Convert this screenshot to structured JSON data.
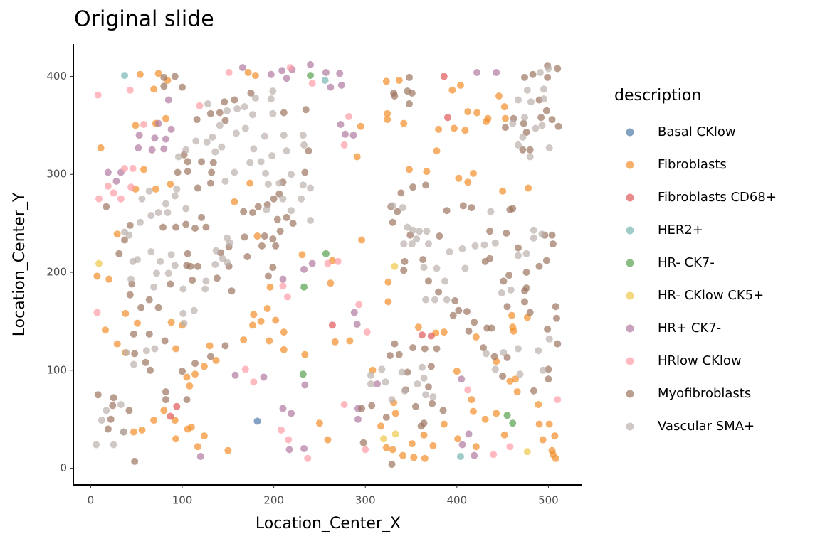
{
  "chart_data": {
    "type": "scatter",
    "title": "Original slide",
    "x_label": "Location_Center_X",
    "y_label": "Location_Center_Y",
    "legend_title": "description",
    "xlim": [
      -19,
      537
    ],
    "ylim": [
      -17,
      433
    ],
    "xticks": [
      0,
      100,
      200,
      300,
      400,
      500
    ],
    "yticks": [
      0,
      100,
      200,
      300,
      400
    ],
    "grid": false,
    "legend_position": "right",
    "series": [
      {
        "name": "Basal CKlow",
        "color": "#4e79a7",
        "x": [
          182
        ],
        "values": [
          48
        ]
      },
      {
        "name": "Fibroblasts",
        "color": "#f28e2b",
        "x": [
          11,
          54,
          74,
          84,
          69,
          82,
          71,
          49,
          58,
          49,
          71,
          87,
          7,
          20,
          29,
          38,
          16,
          29,
          38,
          51,
          88,
          100,
          93,
          105,
          108,
          114,
          124,
          130,
          137,
          110,
          80,
          69,
          56,
          47,
          92,
          93,
          106,
          124,
          117,
          150,
          172,
          180,
          157,
          174,
          182,
          178,
          186,
          193,
          202,
          195,
          211,
          211,
          167,
          177,
          196,
          231,
          262,
          264,
          234,
          267,
          283,
          250,
          259,
          296,
          291,
          295,
          323,
          337,
          324,
          324,
          342,
          348,
          367,
          378,
          380,
          395,
          404,
          397,
          409,
          412,
          422,
          434,
          432,
          446,
          452,
          453,
          402,
          418,
          412,
          478,
          450,
          325,
          325,
          358,
          377,
          386,
          421,
          400,
          443,
          458,
          460,
          461,
          477,
          462,
          308,
          331,
          333,
          317,
          323,
          330,
          341,
          351,
          364,
          353,
          374,
          386,
          365,
          401,
          421,
          418,
          443,
          431,
          416,
          452,
          489,
          490,
          501,
          494,
          504,
          505,
          508,
          507,
          466,
          464
        ],
        "values": [
          327,
          402,
          403,
          396,
          387,
          357,
          352,
          350,
          305,
          285,
          285,
          290,
          196,
          193,
          239,
          158,
          141,
          127,
          118,
          148,
          149,
          146,
          122,
          93,
          84,
          96,
          104,
          125,
          110,
          42,
          59,
          49,
          39,
          37,
          49,
          30,
          40,
          33,
          22,
          18,
          404,
          401,
          272,
          291,
          237,
          157,
          150,
          163,
          151,
          130,
          139,
          121,
          131,
          146,
          185,
          218,
          189,
          212,
          116,
          129,
          130,
          46,
          29,
          233,
          318,
          349,
          395,
          396,
          362,
          356,
          352,
          305,
          303,
          324,
          346,
          386,
          391,
          347,
          345,
          364,
          363,
          357,
          354,
          380,
          369,
          357,
          296,
          301,
          292,
          286,
          283,
          190,
          170,
          144,
          138,
          139,
          134,
          99,
          109,
          89,
          156,
          144,
          154,
          140,
          100,
          67,
          56,
          43,
          21,
          19,
          13,
          25,
          34,
          11,
          23,
          45,
          10,
          30,
          22,
          58,
          56,
          50,
          70,
          34,
          65,
          45,
          45,
          29,
          18,
          14,
          10,
          33,
          78,
          91
        ]
      },
      {
        "name": "Fibroblasts CD68+",
        "color": "#e15759",
        "x": [
          386,
          390,
          264,
          362,
          372,
          87,
          94
        ],
        "values": [
          400,
          358,
          146,
          136,
          135,
          53,
          63
        ]
      },
      {
        "name": "HER2+",
        "color": "#76b7b2",
        "x": [
          37,
          256,
          404
        ],
        "values": [
          401,
          396,
          12
        ]
      },
      {
        "name": "HR- CK7-",
        "color": "#59a14f",
        "x": [
          240,
          257,
          233,
          232,
          455,
          461
        ],
        "values": [
          401,
          219,
          185,
          96,
          54,
          46
        ]
      },
      {
        "name": "HR- CKlow CK5+",
        "color": "#edc948",
        "x": [
          9,
          332,
          320,
          333,
          477
        ],
        "values": [
          209,
          206,
          30,
          35,
          17
        ]
      },
      {
        "name": "HR+ CK7-",
        "color": "#b07aa1",
        "x": [
          166,
          197,
          209,
          220,
          240,
          257,
          272,
          214,
          262,
          274,
          85,
          74,
          88,
          53,
          70,
          82,
          52,
          67,
          80,
          19,
          33,
          28,
          273,
          278,
          287,
          233,
          242,
          210,
          288,
          291,
          158,
          189,
          234,
          210,
          219,
          292,
          292,
          120,
          217,
          233,
          422,
          443,
          405,
          413,
          406,
          419,
          313
        ],
        "values": [
          409,
          402,
          406,
          407,
          412,
          404,
          403,
          398,
          389,
          391,
          376,
          352,
          346,
          340,
          337,
          336,
          327,
          325,
          326,
          302,
          302,
          293,
          351,
          341,
          340,
          203,
          209,
          193,
          159,
          147,
          95,
          93,
          85,
          61,
          56,
          61,
          50,
          12,
          19,
          20,
          404,
          404,
          91,
          35,
          24,
          13,
          86
        ]
      },
      {
        "name": "HRlow CKlow",
        "color": "#ff9da7",
        "x": [
          8,
          43,
          151,
          218,
          242,
          119,
          58,
          9,
          19,
          25,
          37,
          46,
          44,
          33,
          282,
          277,
          259,
          270,
          210,
          215,
          293,
          302,
          7,
          169,
          178,
          277,
          208,
          216,
          237,
          300,
          412,
          440,
          458,
          510
        ],
        "values": [
          381,
          386,
          404,
          409,
          393,
          370,
          351,
          275,
          288,
          281,
          306,
          306,
          287,
          275,
          359,
          330,
          209,
          211,
          186,
          175,
          167,
          139,
          159,
          101,
          88,
          65,
          39,
          29,
          10,
          19,
          80,
          14,
          22,
          70
        ]
      },
      {
        "name": "Myofibroblasts",
        "color": "#9c755f",
        "x": [
          80,
          92,
          100,
          80,
          116,
          131,
          141,
          147,
          146,
          157,
          175,
          211,
          235,
          238,
          234,
          210,
          206,
          200,
          193,
          183,
          177,
          167,
          204,
          214,
          221,
          207,
          199,
          190,
          187,
          202,
          199,
          194,
          168,
          171,
          151,
          142,
          151,
          138,
          154,
          102,
          106,
          106,
          95,
          121,
          134,
          132,
          131,
          117,
          121,
          126,
          114,
          104,
          93,
          79,
          106,
          105,
          109,
          117,
          111,
          87,
          74,
          64,
          55,
          43,
          45,
          43,
          37,
          31,
          17,
          47,
          64,
          81,
          48,
          60,
          65,
          100,
          114,
          131,
          147,
          8,
          25,
          24,
          42,
          22,
          19,
          36,
          48,
          82,
          82,
          105,
          328,
          339,
          352,
          366,
          389,
          407,
          416,
          381,
          349,
          330,
          335,
          343,
          342,
          363,
          369,
          380,
          398,
          402,
          411,
          419,
          433,
          396,
          413,
          438,
          455,
          474,
          480,
          474,
          476,
          467,
          490,
          498,
          505,
          504,
          496,
          454,
          436,
          436,
          431,
          457,
          476,
          451,
          508,
          509,
          499,
          510,
          500,
          500,
          484,
          450,
          455,
          458,
          461,
          441,
          429,
          348,
          346,
          351,
          348,
          331,
          332,
          474,
          483,
          499,
          510,
          499,
          490,
          498,
          504,
          511,
          492,
          476,
          462,
          473,
          472,
          480,
          453,
          332,
          327,
          337,
          346,
          344,
          323,
          307,
          296,
          298,
          329,
          364,
          361,
          355,
          372,
          369,
          373,
          385,
          352,
          365,
          378
        ],
        "values": [
          399,
          400,
          389,
          390,
          356,
          362,
          363,
          355,
          374,
          376,
          383,
          363,
          366,
          324,
          302,
          292,
          280,
          275,
          269,
          267,
          261,
          262,
          254,
          256,
          250,
          242,
          234,
          237,
          227,
          227,
          205,
          196,
          236,
          216,
          226,
          220,
          206,
          194,
          181,
          320,
          313,
          303,
          302,
          313,
          312,
          302,
          291,
          286,
          256,
          246,
          245,
          249,
          246,
          246,
          219,
          207,
          206,
          206,
          192,
          188,
          164,
          172,
          164,
          177,
          188,
          248,
          233,
          219,
          267,
          137,
          137,
          130,
          117,
          108,
          100,
          99,
          107,
          114,
          125,
          75,
          72,
          64,
          59,
          50,
          40,
          37,
          7,
          78,
          70,
          70,
          267,
          281,
          287,
          289,
          263,
          268,
          266,
          237,
          238,
          251,
          262,
          211,
          202,
          213,
          191,
          180,
          171,
          161,
          160,
          149,
          143,
          156,
          140,
          143,
          165,
          170,
          159,
          181,
          200,
          225,
          206,
          212,
          229,
          238,
          238,
          240,
          242,
          214,
          211,
          197,
          184,
          191,
          165,
          153,
          142,
          127,
          101,
          91,
          79,
          94,
          113,
          264,
          265,
          114,
          123,
          399,
          385,
          383,
          372,
          383,
          380,
          399,
          402,
          411,
          408,
          399,
          376,
          365,
          356,
          349,
          358,
          343,
          357,
          352,
          325,
          325,
          348,
          127,
          115,
          116,
          98,
          80,
          52,
          64,
          61,
          26,
          4,
          46,
          43,
          63,
          104,
          83,
          66,
          59,
          123,
          122,
          122
        ]
      },
      {
        "name": "Vascular SMA+",
        "color": "#bab0ac",
        "x": [
          128,
          149,
          160,
          168,
          180,
          199,
          197,
          199,
          177,
          169,
          159,
          141,
          133,
          127,
          115,
          104,
          96,
          136,
          143,
          147,
          157,
          174,
          186,
          198,
          211,
          214,
          190,
          178,
          191,
          194,
          206,
          219,
          232,
          240,
          232,
          233,
          240,
          230,
          210,
          192,
          219,
          56,
          64,
          66,
          54,
          74,
          82,
          84,
          104,
          92,
          94,
          37,
          42,
          46,
          44,
          51,
          66,
          76,
          88,
          92,
          72,
          85,
          69,
          101,
          102,
          125,
          126,
          136,
          149,
          144,
          137,
          152,
          149,
          101,
          113,
          70,
          61,
          47,
          39,
          12,
          17,
          33,
          36,
          6,
          25,
          306,
          306,
          322,
          318,
          340,
          357,
          364,
          366,
          374,
          343,
          329,
          362,
          330,
          341,
          346,
          352,
          359,
          367,
          356,
          342,
          351,
          369,
          364,
          378,
          387,
          392,
          406,
          409,
          420,
          430,
          442,
          437,
          484,
          484,
          493,
          467,
          476,
          449,
          459,
          366,
          376,
          389,
          432,
          451,
          467,
          489,
          501,
          494,
          442,
          469,
          477,
          491,
          500,
          495,
          467,
          481,
          461,
          474,
          486,
          493,
          472,
          467,
          480,
          501,
          495
        ],
        "values": [
          372,
          365,
          367,
          369,
          378,
          385,
          377,
          362,
          361,
          347,
          342,
          350,
          338,
          333,
          334,
          325,
          318,
          323,
          328,
          293,
          302,
          312,
          313,
          319,
          340,
          324,
          339,
          326,
          301,
          290,
          291,
          300,
          289,
          286,
          340,
          330,
          253,
          275,
          275,
          264,
          263,
          275,
          283,
          258,
          251,
          261,
          270,
          261,
          265,
          278,
          285,
          241,
          238,
          211,
          193,
          213,
          221,
          211,
          218,
          207,
          199,
          199,
          185,
          183,
          148,
          183,
          191,
          208,
          210,
          214,
          222,
          230,
          235,
          158,
          161,
          122,
          120,
          106,
          118,
          49,
          59,
          65,
          37,
          24,
          24,
          95,
          86,
          88,
          101,
          98,
          86,
          92,
          75,
          73,
          79,
          70,
          103,
          268,
          266,
          246,
          243,
          242,
          242,
          234,
          229,
          229,
          229,
          205,
          204,
          191,
          221,
          224,
          204,
          227,
          228,
          230,
          262,
          243,
          235,
          239,
          217,
          219,
          179,
          182,
          172,
          172,
          172,
          117,
          118,
          122,
          120,
          132,
          100,
          101,
          96,
          386,
          404,
          408,
          387,
          376,
          374,
          352,
          358,
          347,
          350,
          338,
          330,
          318,
          327,
          377
        ]
      }
    ]
  }
}
